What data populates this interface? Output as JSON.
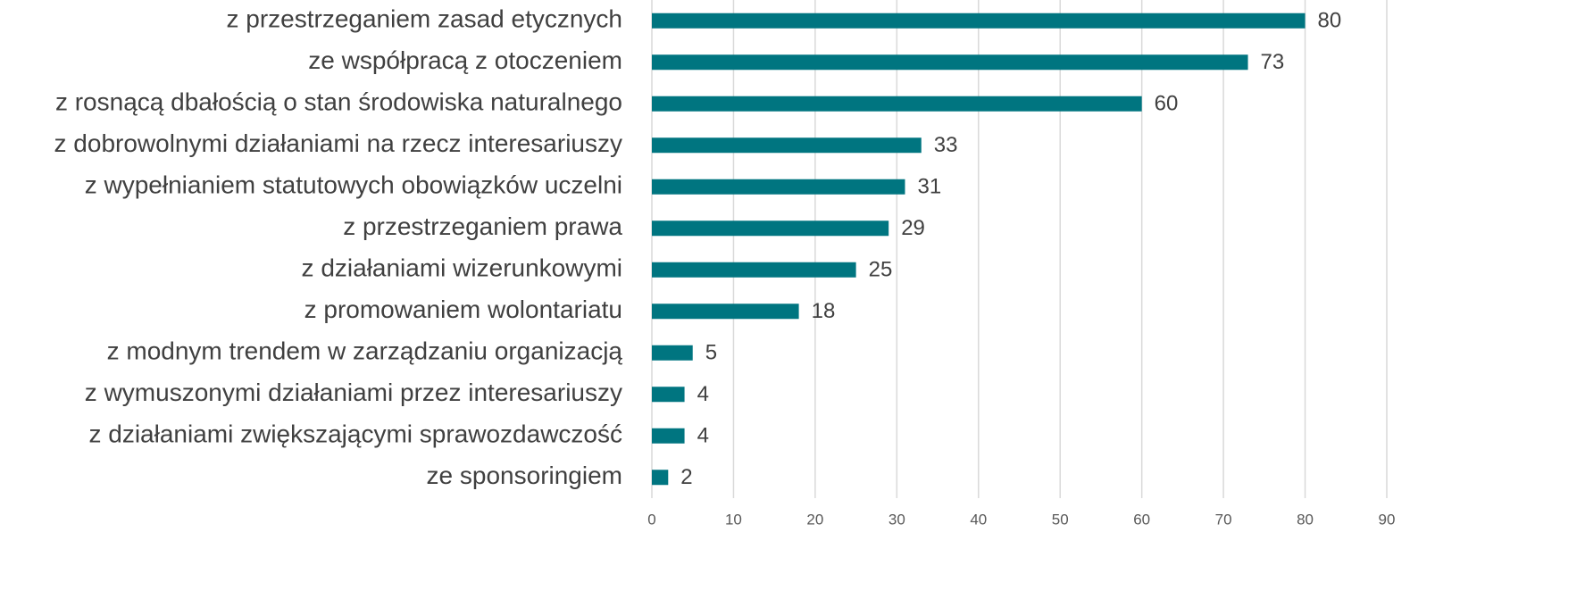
{
  "chart_data": {
    "type": "barh",
    "categories": [
      "z przestrzeganiem zasad etycznych",
      "ze współpracą z otoczeniem",
      "z rosnącą dbałością o stan środowiska naturalnego",
      "z dobrowolnymi działaniami na rzecz interesariuszy",
      "z wypełnianiem statutowych obowiązków uczelni",
      "z przestrzeganiem prawa",
      "z działaniami wizerunkowymi",
      "z promowaniem wolontariatu",
      "z modnym trendem w zarządzaniu organizacją",
      "z wymuszonymi działaniami przez interesariuszy",
      "z działaniami zwiększającymi sprawozdawczość",
      "ze sponsoringiem"
    ],
    "values": [
      80,
      73,
      60,
      33,
      31,
      29,
      25,
      18,
      5,
      4,
      4,
      2
    ],
    "color": "#007580",
    "xlim": [
      0,
      90
    ],
    "xticks": [
      0,
      10,
      20,
      30,
      40,
      50,
      60,
      70,
      80,
      90
    ],
    "grid": true
  }
}
